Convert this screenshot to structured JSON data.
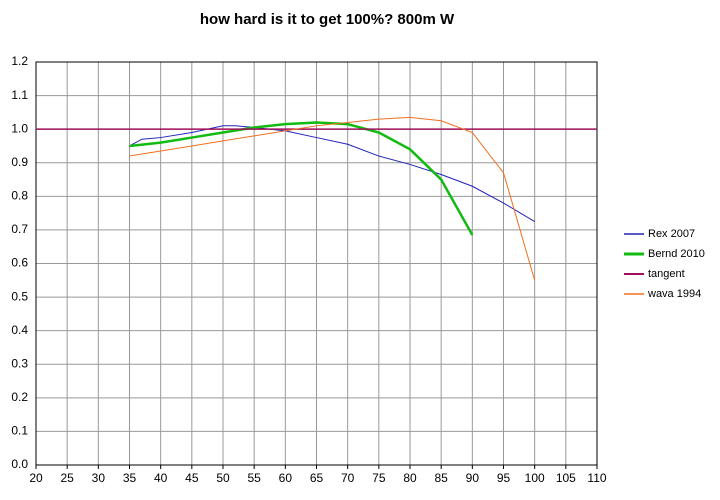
{
  "chart_data": {
    "type": "line",
    "title": "how hard is it to get 100%? 800m W",
    "xlim": [
      20,
      110
    ],
    "xticks": [
      20,
      25,
      30,
      35,
      40,
      45,
      50,
      55,
      60,
      65,
      70,
      75,
      80,
      85,
      90,
      95,
      100,
      105,
      110
    ],
    "ylim": [
      0,
      1.2
    ],
    "yticks": [
      {
        "value": 0,
        "label": "0.0"
      },
      0.1,
      0.2,
      0.3,
      0.4,
      0.5,
      0.6,
      0.7,
      0.8,
      0.9,
      {
        "value": 1,
        "label": "1.0"
      },
      1.1,
      1.2
    ],
    "grid": true,
    "series": [
      {
        "name": "Rex 2007",
        "color": "#2222bb",
        "width": 1,
        "x": [
          35,
          37,
          40,
          45,
          50,
          52,
          55,
          60,
          65,
          70,
          75,
          80,
          85,
          90,
          95,
          100
        ],
        "values": [
          0.95,
          0.97,
          0.975,
          0.99,
          1.01,
          1.01,
          1.005,
          0.995,
          0.975,
          0.955,
          0.92,
          0.895,
          0.865,
          0.83,
          0.78,
          0.725
        ]
      },
      {
        "name": "Bernd 2010",
        "color": "#11bb11",
        "width": 2.5,
        "x": [
          35,
          40,
          45,
          50,
          55,
          60,
          65,
          70,
          75,
          80,
          85,
          90
        ],
        "values": [
          0.95,
          0.96,
          0.975,
          0.99,
          1.005,
          1.015,
          1.02,
          1.015,
          0.99,
          0.94,
          0.85,
          0.685
        ]
      },
      {
        "name": "tangent",
        "color": "#a0105a",
        "width": 1.5,
        "x": [
          20,
          110
        ],
        "values": [
          1,
          1
        ]
      },
      {
        "name": "wava 1994",
        "color": "#f07020",
        "width": 1,
        "x": [
          35,
          40,
          45,
          50,
          55,
          60,
          65,
          70,
          75,
          80,
          85,
          90,
          95,
          100
        ],
        "values": [
          0.92,
          0.935,
          0.95,
          0.965,
          0.98,
          0.995,
          1.01,
          1.02,
          1.03,
          1.035,
          1.025,
          0.99,
          0.87,
          0.55
        ]
      }
    ]
  }
}
